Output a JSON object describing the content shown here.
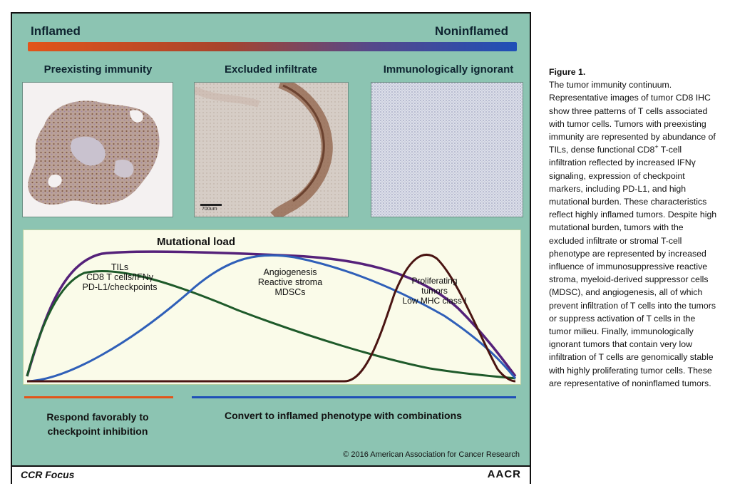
{
  "figure": {
    "gradient": {
      "left_label": "Inflamed",
      "right_label": "Noninflamed"
    },
    "panels": [
      {
        "title": "Preexisting immunity"
      },
      {
        "title": "Excluded infiltrate",
        "scale_label": "700um"
      },
      {
        "title": "Immunologically ignorant"
      }
    ],
    "graph": {
      "mutational_load_label": "Mutational load",
      "annotations": {
        "tils": [
          "TILs",
          "CD8 T cells/IFNγ",
          "PD-L1/checkpoints"
        ],
        "angio": [
          "Angiogenesis",
          "Reactive stroma",
          "MDSCs"
        ],
        "prolif": [
          "Proliferating",
          "tumors",
          "Low MHC class I"
        ]
      },
      "colors": {
        "mutational_load": "#55217a",
        "tils": "#1e5a2a",
        "angio": "#2f5fb8",
        "prolif": "#4a1412"
      }
    },
    "bottom": {
      "respond_lines": [
        "Respond favorably to",
        "checkpoint inhibition"
      ],
      "convert": "Convert to inflamed phenotype with combinations",
      "copyright": "© 2016 American Association for Cancer Research"
    },
    "footer": {
      "journal": "CCR Focus",
      "publisher": "AACR"
    }
  },
  "caption": {
    "label": "Figure 1.",
    "text_parts": [
      "The tumor immunity continuum. Representative images of tumor CD8 IHC show three patterns of T cells associated with tumor cells. Tumors with preexisting immunity are represented by abundance of TILs, dense functional CD8",
      "+",
      " T-cell infiltration reflected by increased IFNγ signaling, expression of checkpoint markers, including PD-L1, and high mutational burden. These characteristics reflect highly inflamed tumors. Despite high mutational burden, tumors with the excluded infiltrate or stromal T-cell phenotype are represented by increased influence of immunosuppressive reactive stroma, myeloid-derived suppressor cells (MDSC), and angiogenesis, all of which prevent infiltration of T cells into the tumors or suppress activation of T cells in the tumor milieu. Finally, immunologically ignorant tumors that contain very low infiltration of T cells are genomically stable with highly proliferating tumor cells. These are representative of noninflamed tumors."
    ]
  }
}
